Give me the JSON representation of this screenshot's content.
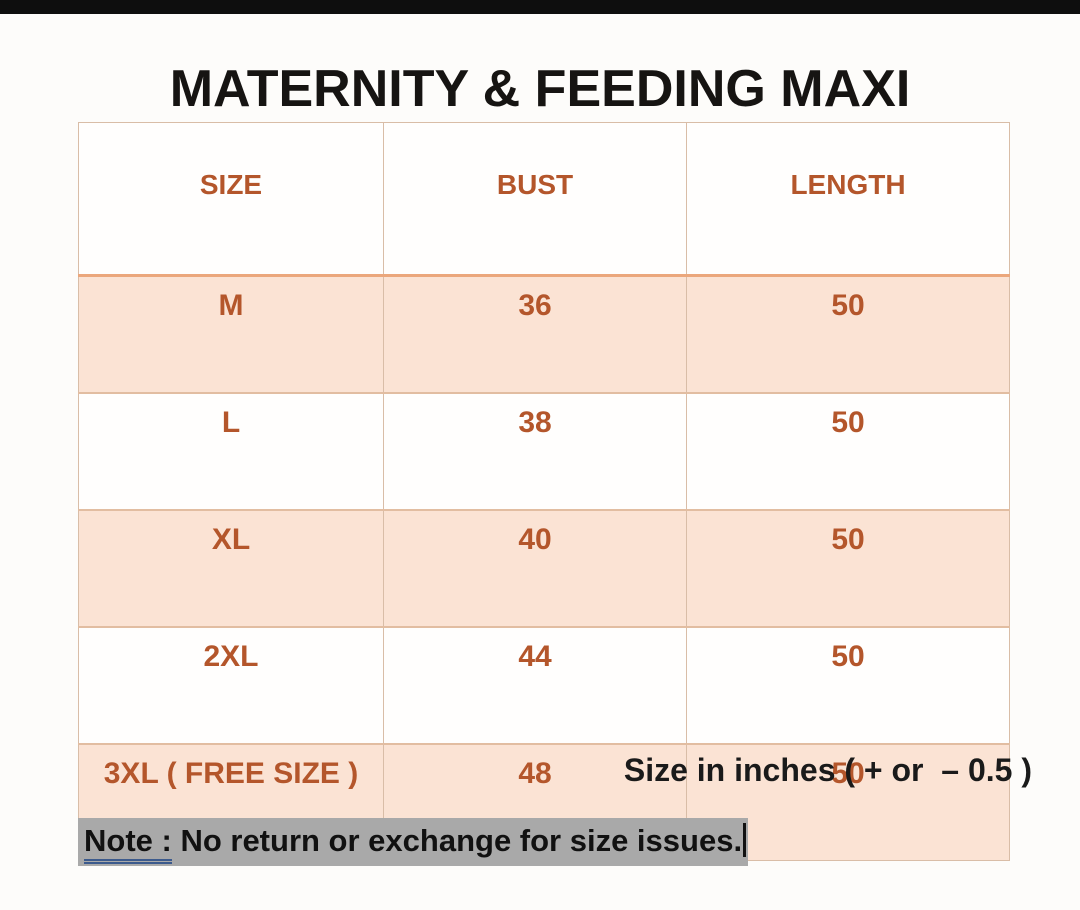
{
  "page": {
    "title": "MATERNITY & FEEDING MAXI",
    "size_unit_note": "Size in inches ( + or  – 0.5 )",
    "note": {
      "label": "Note :",
      "text": " No return or exchange for size issues."
    }
  },
  "table": {
    "headers": [
      "SIZE",
      "BUST",
      "LENGTH"
    ],
    "rows": [
      {
        "size": "M",
        "bust": "36",
        "length": "50"
      },
      {
        "size": "L",
        "bust": "38",
        "length": "50"
      },
      {
        "size": "XL",
        "bust": "40",
        "length": "50"
      },
      {
        "size": "2XL",
        "bust": "44",
        "length": "50"
      },
      {
        "size": "3XL ( FREE SIZE )",
        "bust": "48",
        "length": "50"
      }
    ]
  },
  "chart_data": {
    "type": "table",
    "title": "MATERNITY & FEEDING MAXI",
    "columns": [
      "SIZE",
      "BUST",
      "LENGTH"
    ],
    "rows": [
      [
        "M",
        "36",
        "50"
      ],
      [
        "L",
        "38",
        "50"
      ],
      [
        "XL",
        "40",
        "50"
      ],
      [
        "2XL",
        "44",
        "50"
      ],
      [
        "3XL ( FREE SIZE )",
        "48",
        "50"
      ]
    ],
    "units": "inches",
    "tolerance": "+ or – 0.5"
  },
  "colors": {
    "accent_text": "#b4562b",
    "row_highlight": "#fbe3d4",
    "table_border": "#d9bda7",
    "header_divider": "#eba77c",
    "note_highlight": "#a9a9a9",
    "note_underline": "#3c5a8c",
    "top_bar": "#0e0e0e"
  }
}
